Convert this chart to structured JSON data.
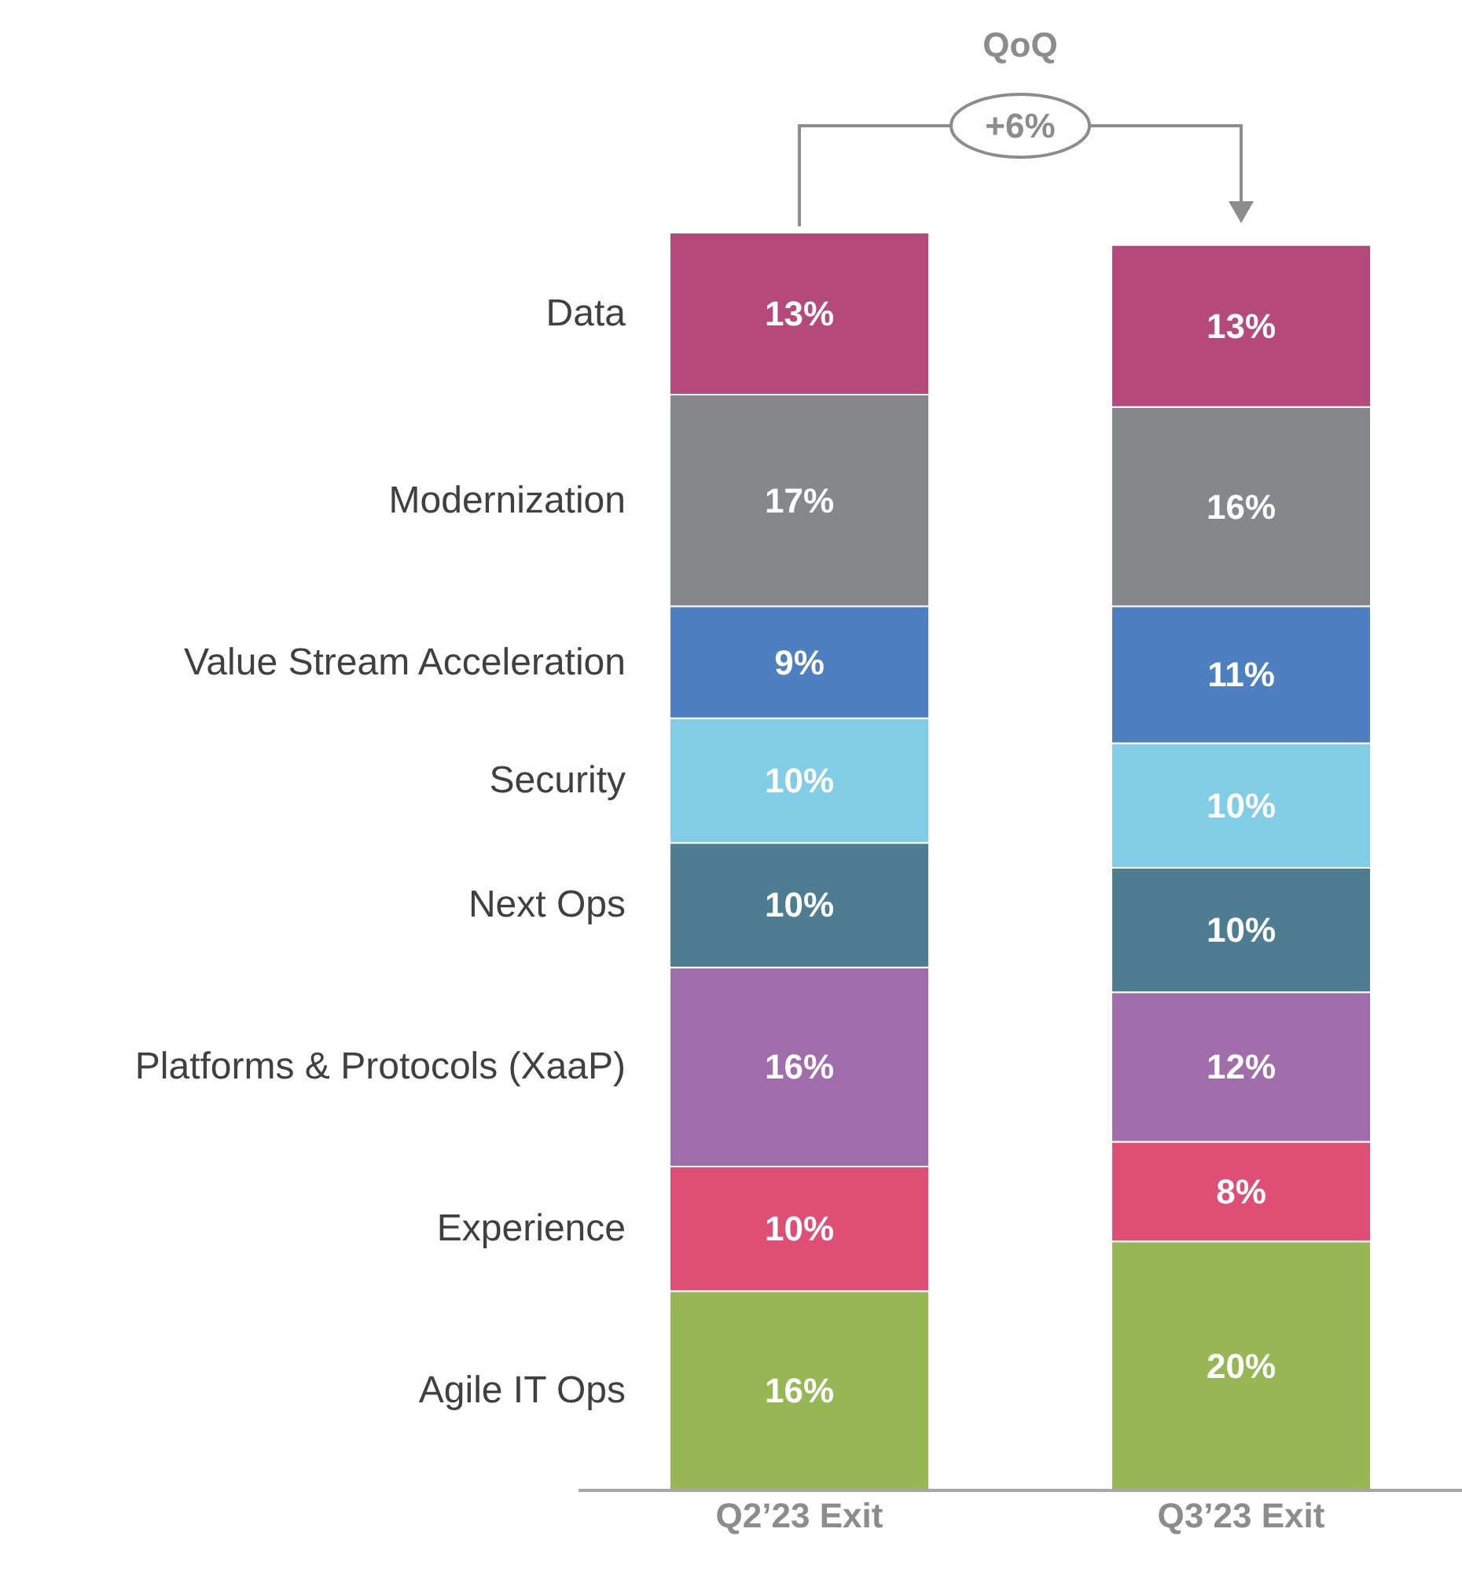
{
  "chart_data": {
    "type": "bar",
    "stacked": true,
    "categories": [
      "Q2’23 Exit",
      "Q3’23 Exit"
    ],
    "series": [
      {
        "name": "Agile IT Ops",
        "color": "#97b755",
        "values": [
          16,
          20
        ],
        "value_labels": [
          "16%",
          "20%"
        ]
      },
      {
        "name": "Experience",
        "color": "#df4e74",
        "values": [
          10,
          8
        ],
        "value_labels": [
          "10%",
          "8%"
        ]
      },
      {
        "name": "Platforms & Protocols (XaaP)",
        "color": "#a06dab",
        "values": [
          16,
          12
        ],
        "value_labels": [
          "16%",
          "12%"
        ]
      },
      {
        "name": "Next Ops",
        "color": "#4e7d91",
        "values": [
          10,
          10
        ],
        "value_labels": [
          "10%",
          "10%"
        ]
      },
      {
        "name": "Security",
        "color": "#82cde6",
        "values": [
          10,
          10
        ],
        "value_labels": [
          "10%",
          "10%"
        ]
      },
      {
        "name": "Value Stream Acceleration",
        "color": "#4e7fc1",
        "values": [
          9,
          11
        ],
        "value_labels": [
          "9%",
          "11%"
        ]
      },
      {
        "name": "Modernization",
        "color": "#86878b",
        "values": [
          17,
          16
        ],
        "value_labels": [
          "17%",
          "16%"
        ]
      },
      {
        "name": "Data",
        "color": "#b5497a",
        "values": [
          13,
          13
        ],
        "value_labels": [
          "13%",
          "13%"
        ]
      }
    ],
    "annotations": [
      "QoQ",
      "+6%"
    ]
  }
}
